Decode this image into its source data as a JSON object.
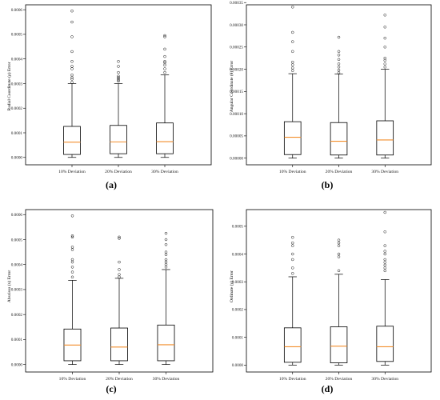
{
  "panels": [
    {
      "caption": "(a)"
    },
    {
      "caption": "(b)"
    },
    {
      "caption": "(c)"
    },
    {
      "caption": "(d)"
    }
  ],
  "chart_data": [
    {
      "type": "box",
      "ylabel": "Radial Coordinate (ρ) Error",
      "ylim": [
        -3e-05,
        0.00062
      ],
      "yticks": [
        "0.0000",
        "0.0001",
        "0.0002",
        "0.0003",
        "0.0004",
        "0.0005",
        "0.0006"
      ],
      "ytick_values": [
        0,
        0.0001,
        0.0002,
        0.0003,
        0.0004,
        0.0005,
        0.0006
      ],
      "categories": [
        "10% Deviation",
        "20% Deviation",
        "30% Deviation"
      ],
      "boxes": [
        {
          "whisker_low": 0.0,
          "q1": 1.2e-05,
          "median": 6.2e-05,
          "q3": 0.000126,
          "whisker_high": 0.0003,
          "outliers": [
            0.000305,
            0.000318,
            0.000325,
            0.000335,
            0.00036,
            0.00037,
            0.00039,
            0.00043,
            0.00049,
            0.00055,
            0.000595
          ]
        },
        {
          "whisker_low": 0.0,
          "q1": 1.5e-05,
          "median": 6.3e-05,
          "q3": 0.00013,
          "whisker_high": 0.0003,
          "outliers": [
            0.00031,
            0.000315,
            0.00032,
            0.000325,
            0.00033,
            0.000345,
            0.00037,
            0.00039
          ]
        },
        {
          "whisker_low": 0.0,
          "q1": 1.5e-05,
          "median": 6.4e-05,
          "q3": 0.00014,
          "whisker_high": 0.000335,
          "outliers": [
            0.000345,
            0.00036,
            0.000375,
            0.000385,
            0.00039,
            0.00041,
            0.00044,
            0.00049,
            0.000495
          ]
        }
      ]
    },
    {
      "type": "box",
      "ylabel": "Angular Coordinate (θ) Error",
      "ylim": [
        -1.5e-05,
        0.000345
      ],
      "yticks": [
        "0.00000",
        "0.00005",
        "0.00010",
        "0.00015",
        "0.00020",
        "0.00025",
        "0.00030",
        "0.00035"
      ],
      "ytick_values": [
        0,
        5e-05,
        0.0001,
        0.00015,
        0.0002,
        0.00025,
        0.0003,
        0.00035
      ],
      "categories": [
        "10% Deviation",
        "20% Deviation",
        "30% Deviation"
      ],
      "boxes": [
        {
          "whisker_low": 0.0,
          "q1": 8e-06,
          "median": 4.7e-05,
          "q3": 8.2e-05,
          "whisker_high": 0.00019,
          "outliers": [
            0.000197,
            0.000203,
            0.00021,
            0.000216,
            0.00024,
            0.000262,
            0.000283,
            0.00034
          ]
        },
        {
          "whisker_low": 0.0,
          "q1": 7e-06,
          "median": 3.8e-05,
          "q3": 8e-05,
          "whisker_high": 0.000189,
          "outliers": [
            0.000192,
            0.000198,
            0.000205,
            0.000212,
            0.000222,
            0.000232,
            0.00024,
            0.000272
          ]
        },
        {
          "whisker_low": 0.0,
          "q1": 7e-06,
          "median": 4.1e-05,
          "q3": 8.4e-05,
          "whisker_high": 0.0002,
          "outliers": [
            0.000205,
            0.000212,
            0.00022,
            0.000225,
            0.00025,
            0.00027,
            0.000295,
            0.000322
          ]
        }
      ]
    },
    {
      "type": "box",
      "ylabel": "Abscissa (x) Error",
      "ylim": [
        -3e-05,
        0.00062
      ],
      "yticks": [
        "0.0000",
        "0.0001",
        "0.0002",
        "0.0003",
        "0.0004",
        "0.0005",
        "0.0006"
      ],
      "ytick_values": [
        0,
        0.0001,
        0.0002,
        0.0003,
        0.0004,
        0.0005,
        0.0006
      ],
      "categories": [
        "10% Deviation",
        "20% Deviation",
        "30% Deviation"
      ],
      "boxes": [
        {
          "whisker_low": 0.0,
          "q1": 1.5e-05,
          "median": 7.8e-05,
          "q3": 0.000142,
          "whisker_high": 0.000337,
          "outliers": [
            0.00035,
            0.00037,
            0.00039,
            0.00041,
            0.00042,
            0.00046,
            0.00047,
            0.00051,
            0.000515,
            0.000595
          ]
        },
        {
          "whisker_low": 0.0,
          "q1": 1.5e-05,
          "median": 7e-05,
          "q3": 0.000146,
          "whisker_high": 0.000345,
          "outliers": [
            0.00035,
            0.00036,
            0.00038,
            0.00041,
            0.000505,
            0.00051
          ]
        },
        {
          "whisker_low": 0.0,
          "q1": 1.5e-05,
          "median": 7.9e-05,
          "q3": 0.000158,
          "whisker_high": 0.00038,
          "outliers": [
            0.00039,
            0.0004,
            0.00041,
            0.00042,
            0.00044,
            0.00045,
            0.00048,
            0.0005,
            0.000525
          ]
        }
      ]
    },
    {
      "type": "box",
      "ylabel": "Ordinate (y) Error",
      "ylim": [
        -2.5e-05,
        0.00056
      ],
      "yticks": [
        "0.0000",
        "0.0001",
        "0.0002",
        "0.0003",
        "0.0004",
        "0.0005"
      ],
      "ytick_values": [
        0,
        0.0001,
        0.0002,
        0.0003,
        0.0004,
        0.0005
      ],
      "categories": [
        "10% Deviation",
        "20% Deviation",
        "30% Deviation"
      ],
      "boxes": [
        {
          "whisker_low": 0.0,
          "q1": 1e-05,
          "median": 6.6e-05,
          "q3": 0.000134,
          "whisker_high": 0.000318,
          "outliers": [
            0.00033,
            0.00035,
            0.00038,
            0.0004,
            0.00043,
            0.00044,
            0.00046
          ]
        },
        {
          "whisker_low": 0.0,
          "q1": 8e-06,
          "median": 6.8e-05,
          "q3": 0.000138,
          "whisker_high": 0.000327,
          "outliers": [
            0.00034,
            0.00039,
            0.0004,
            0.00043,
            0.00044,
            0.00045
          ]
        },
        {
          "whisker_low": 0.0,
          "q1": 1.3e-05,
          "median": 6.6e-05,
          "q3": 0.00014,
          "whisker_high": 0.000308,
          "outliers": [
            0.00034,
            0.00035,
            0.00036,
            0.00037,
            0.00038,
            0.0004,
            0.00041,
            0.00043,
            0.00048,
            0.00055
          ]
        }
      ]
    }
  ]
}
